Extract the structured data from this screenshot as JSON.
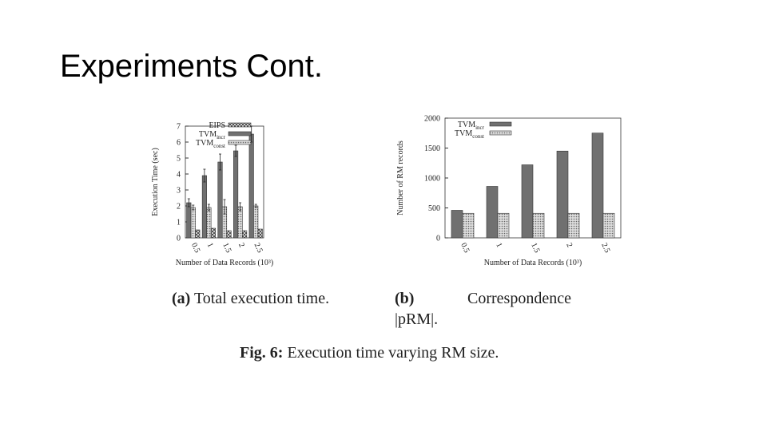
{
  "slide_title": "Experiments Cont.",
  "chart_data": [
    {
      "type": "bar",
      "ylabel": "Execution Time (sec)",
      "xlabel": "Number of Data Records (10³)",
      "categories": [
        "0.5",
        "1",
        "1.5",
        "2",
        "2.5"
      ],
      "ylim": [
        0,
        7
      ],
      "yticks": [
        0,
        1,
        2,
        3,
        4,
        5,
        6,
        7
      ],
      "series": [
        {
          "name": "TVM",
          "subscript": "incr",
          "color": "#707070",
          "pattern": "solid",
          "values": [
            2.2,
            3.9,
            4.75,
            5.45,
            6.5
          ],
          "errors": [
            0.25,
            0.4,
            0.5,
            0.35,
            0.5
          ]
        },
        {
          "name": "TVM",
          "subscript": "const",
          "color": "#b0b0b0",
          "pattern": "dots",
          "values": [
            1.9,
            1.9,
            1.95,
            1.95,
            2.0
          ],
          "errors": [
            0.15,
            0.2,
            0.45,
            0.25,
            0.1
          ]
        },
        {
          "name": "EIPS",
          "color": "#606060",
          "pattern": "crosshatch",
          "values": [
            0.5,
            0.6,
            0.45,
            0.45,
            0.55
          ]
        }
      ],
      "caption_label": "(a)",
      "caption": "Total execution time."
    },
    {
      "type": "bar",
      "ylabel": "Number of RM records",
      "xlabel": "Number of Data Records (10³)",
      "categories": [
        "0.5",
        "1",
        "1.5",
        "2",
        "2.5"
      ],
      "ylim": [
        0,
        2000
      ],
      "yticks": [
        0,
        500,
        1000,
        1500,
        2000
      ],
      "series": [
        {
          "name": "TVM",
          "subscript": "incr",
          "color": "#707070",
          "pattern": "solid",
          "values": [
            460,
            860,
            1220,
            1450,
            1750
          ]
        },
        {
          "name": "TVM",
          "subscript": "const",
          "color": "#b0b0b0",
          "pattern": "dots",
          "values": [
            410,
            410,
            410,
            410,
            410
          ]
        }
      ],
      "caption_label": "(b)",
      "caption": "Correspondence",
      "caption_line2": "|pRM|."
    }
  ],
  "figure_label": "Fig. 6:",
  "figure_caption": "Execution time varying RM size."
}
